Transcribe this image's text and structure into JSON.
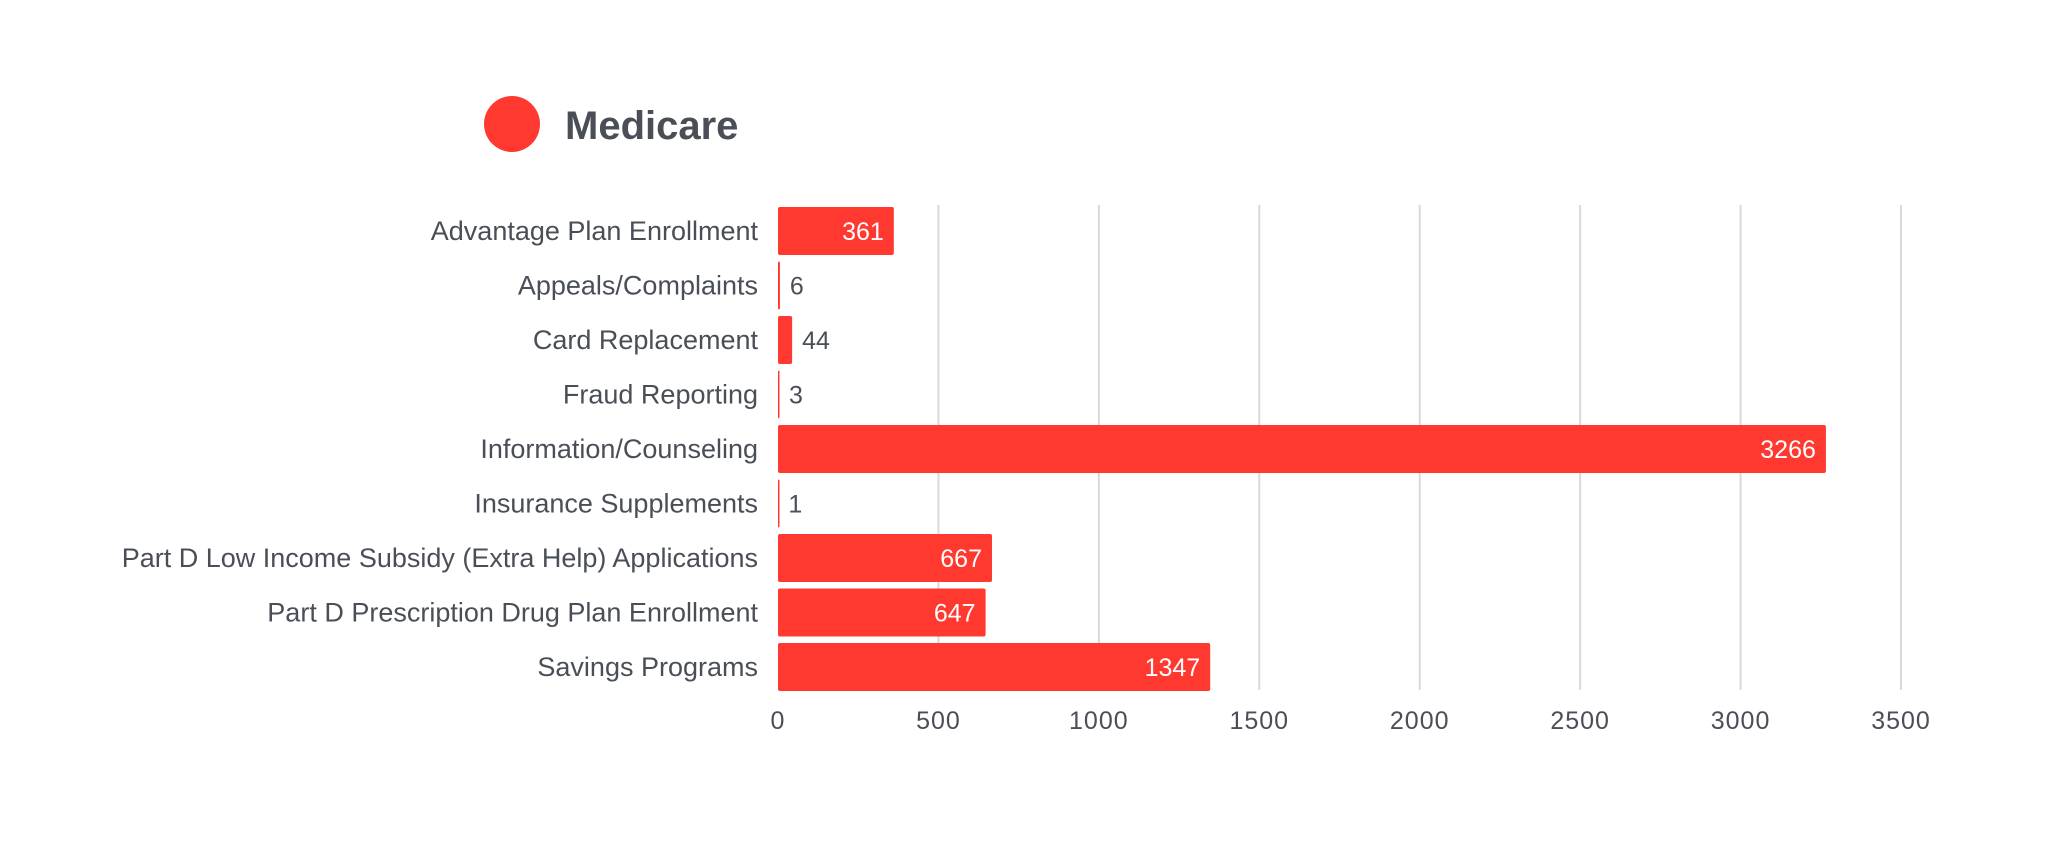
{
  "legend": {
    "label": "Medicare"
  },
  "colors": {
    "bar": "#ff3830",
    "text": "#4a4f57",
    "grid": "#d9d9d9"
  },
  "chart_data": {
    "type": "bar",
    "orientation": "horizontal",
    "categories": [
      "Advantage Plan Enrollment",
      "Appeals/Complaints",
      "Card Replacement",
      "Fraud Reporting",
      "Information/Counseling",
      "Insurance Supplements",
      "Part D Low Income Subsidy (Extra Help) Applications",
      "Part D Prescription Drug Plan Enrollment",
      "Savings Programs"
    ],
    "series": [
      {
        "name": "Medicare",
        "values": [
          361,
          6,
          44,
          3,
          3266,
          1,
          667,
          647,
          1347
        ]
      }
    ],
    "xlim": [
      0,
      3500
    ],
    "xticks": [
      "0",
      "500",
      "1000",
      "1500",
      "2000",
      "2500",
      "3000",
      "3500"
    ],
    "grid": "vertical",
    "legend_position": "top-left",
    "data_labels": true
  }
}
